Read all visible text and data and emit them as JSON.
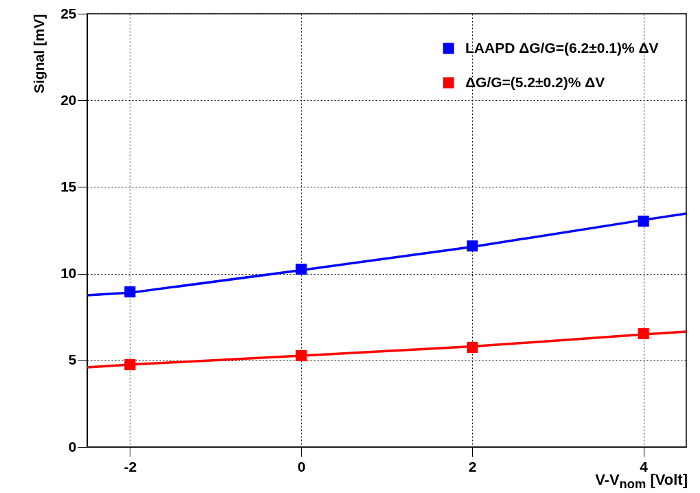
{
  "chart_data": {
    "type": "scatter",
    "xlabel": "V-V$_{nom}$ [Volt]",
    "ylabel": "Signal [mV]",
    "xlim": [
      -2.5,
      4.5
    ],
    "xticks": [
      -2,
      0,
      2,
      4
    ],
    "ylim": [
      0,
      25
    ],
    "yticks": [
      0,
      5,
      10,
      15,
      20,
      25
    ],
    "grid": true,
    "legend": "top right",
    "series": [
      {
        "name": "LAAPD ΔG/G=(6.2±0.1)% ΔV",
        "color": "#0000ff",
        "marker": "square",
        "x": [
          -2,
          0,
          2,
          4
        ],
        "values": [
          8.95,
          10.26,
          11.6,
          13.03
        ]
      },
      {
        "name": "ΔG/G=(5.2±0.2)% ΔV",
        "color": "#ff0000",
        "marker": "square",
        "x": [
          -2,
          0,
          2,
          4
        ],
        "values": [
          4.75,
          5.27,
          5.75,
          6.54
        ]
      },
      {
        "color": "#0000ff",
        "type": "line",
        "line_style": "solid",
        "x": [
          -2.5,
          -2,
          0,
          2,
          4,
          4.5
        ],
        "values": [
          8.76,
          8.9,
          10.2,
          11.55,
          13.1,
          13.47
        ]
      },
      {
        "color": "#ff0000",
        "type": "line",
        "line_style": "solid",
        "x": [
          -2.5,
          -2,
          0,
          2,
          4,
          4.5
        ],
        "values": [
          4.6,
          4.75,
          5.27,
          5.8,
          6.5,
          6.66
        ]
      }
    ]
  }
}
